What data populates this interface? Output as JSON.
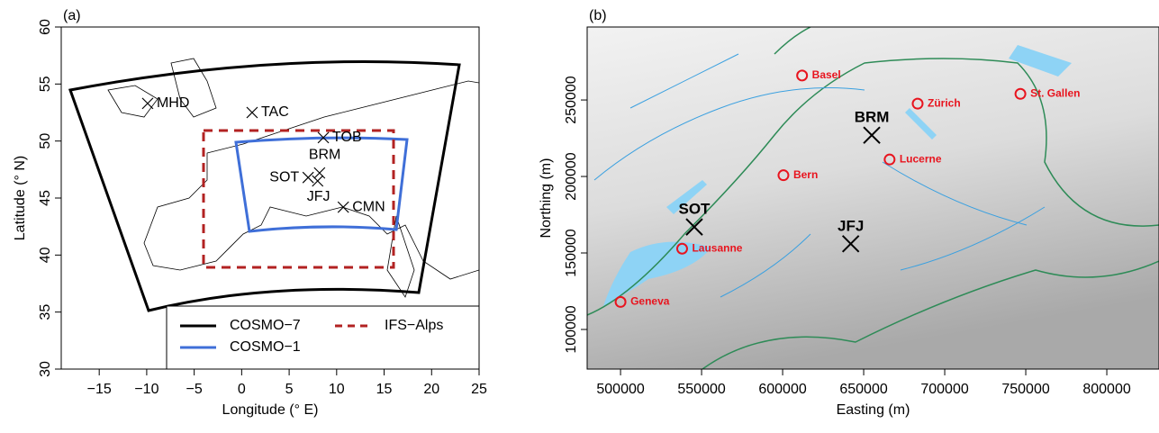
{
  "panels": [
    {
      "label": "(a)",
      "xlabel": "Longitude (° E)",
      "ylabel": "Latitude (° N)",
      "xlim": [
        -19,
        25
      ],
      "ylim": [
        30,
        60
      ],
      "xticks": [
        {
          "value": -15,
          "label": "−15"
        },
        {
          "value": -10,
          "label": "−10"
        },
        {
          "value": -5,
          "label": "−5"
        },
        0,
        5,
        10,
        15,
        20,
        25
      ],
      "yticks": [
        30,
        35,
        40,
        45,
        50,
        55,
        60
      ],
      "stations": [
        {
          "name": "MHD",
          "lon": -9.9,
          "lat": 53.3
        },
        {
          "name": "TAC",
          "lon": 1.1,
          "lat": 52.5
        },
        {
          "name": "TOB",
          "lon": 8.6,
          "lat": 50.3
        },
        {
          "name": "BRM",
          "lon": 8.2,
          "lat": 47.2
        },
        {
          "name": "SOT",
          "lon": 7.0,
          "lat": 46.8
        },
        {
          "name": "JFJ",
          "lon": 8.0,
          "lat": 46.5
        },
        {
          "name": "CMN",
          "lon": 10.7,
          "lat": 44.2
        }
      ],
      "legend": [
        {
          "name": "COSMO−7",
          "color": "#000000",
          "dash": false
        },
        {
          "name": "COSMO−1",
          "color": "#3f6fd8",
          "dash": false
        },
        {
          "name": "IFS−Alps",
          "color": "#b22222",
          "dash": true
        }
      ]
    },
    {
      "label": "(b)",
      "xlabel": "Easting (m)",
      "ylabel": "Northing (m)",
      "xlim": [
        479400,
        832200
      ],
      "ylim": [
        74100,
        297700
      ],
      "xticks": [
        500000,
        550000,
        600000,
        650000,
        700000,
        750000,
        800000
      ],
      "yticks": [
        100000,
        150000,
        200000,
        250000
      ],
      "stations": [
        {
          "name": "BRM",
          "x": 655000,
          "y": 227000
        },
        {
          "name": "SOT",
          "x": 545500,
          "y": 167000
        },
        {
          "name": "JFJ",
          "x": 642000,
          "y": 156000
        }
      ],
      "cities": [
        {
          "name": "Basel",
          "x": 612000,
          "y": 266000
        },
        {
          "name": "Zürich",
          "x": 683300,
          "y": 247600
        },
        {
          "name": "St. Gallen",
          "x": 746700,
          "y": 254000
        },
        {
          "name": "Bern",
          "x": 600500,
          "y": 200800
        },
        {
          "name": "Lucerne",
          "x": 666000,
          "y": 211100
        },
        {
          "name": "Lausanne",
          "x": 538000,
          "y": 152800
        },
        {
          "name": "Geneva",
          "x": 500000,
          "y": 118000
        }
      ]
    }
  ]
}
